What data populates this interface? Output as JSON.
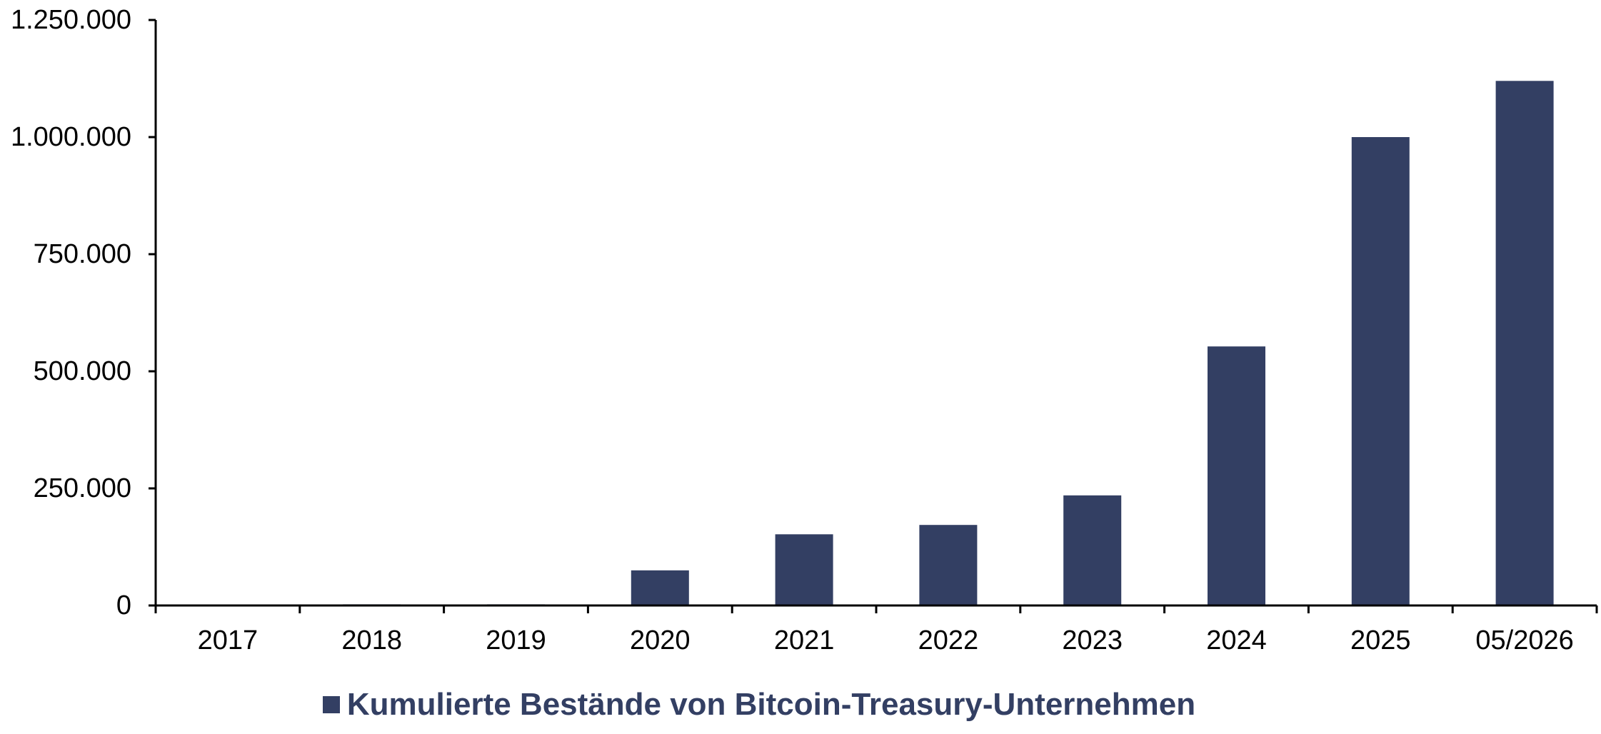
{
  "chart_data": {
    "type": "bar",
    "categories": [
      "2017",
      "2018",
      "2019",
      "2020",
      "2021",
      "2022",
      "2023",
      "2024",
      "2025",
      "05/2026"
    ],
    "series": [
      {
        "name": "Kumulierte Bestände von Bitcoin-Treasury-Unternehmen",
        "values": [
          1500,
          2500,
          2500,
          75000,
          152000,
          172000,
          235000,
          553000,
          1000000,
          1120000
        ],
        "color": "#333f63"
      }
    ],
    "ylim": [
      0,
      1250000
    ],
    "yticks": [
      0,
      250000,
      500000,
      750000,
      1000000,
      1250000
    ],
    "ytick_labels": [
      "0",
      "250.000",
      "500.000",
      "750.000",
      "1.000.000",
      "1.250.000"
    ],
    "grid": false,
    "legend_position": "bottom-center"
  }
}
